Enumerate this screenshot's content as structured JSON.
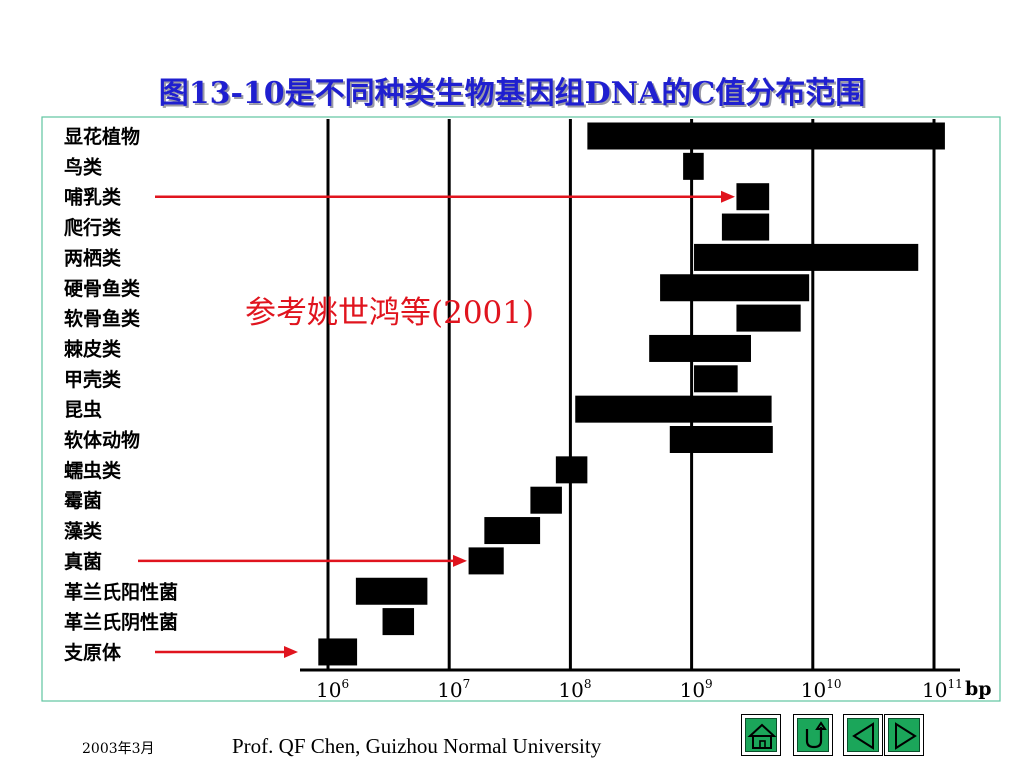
{
  "slide": {
    "title": "图13-10是不同种类生物基因组DNA的C值分布范围",
    "footer_date": "2003年3月",
    "footer_author": "Prof. QF Chen,  Guizhou Normal University",
    "nav_buttons": [
      "home-icon",
      "return-icon",
      "previous-icon",
      "next-icon"
    ],
    "colors": {
      "title": "#1f1fd0",
      "frame": "#5fc4a0",
      "annotation": "#e0141e",
      "bar": "#000000",
      "nav": "#1ba65a"
    }
  },
  "chart_data": {
    "type": "bar",
    "orientation": "horizontal-range",
    "scale": "log10",
    "unit_label": "bp",
    "x_ticks": [
      {
        "base": "10",
        "exp": "6",
        "value": 6
      },
      {
        "base": "10",
        "exp": "7",
        "value": 7
      },
      {
        "base": "10",
        "exp": "8",
        "value": 8
      },
      {
        "base": "10",
        "exp": "9",
        "value": 9
      },
      {
        "base": "10",
        "exp": "10",
        "value": 10
      },
      {
        "base": "10",
        "exp": "11",
        "value": 11
      }
    ],
    "categories": [
      "显花植物",
      "鸟类",
      "哺乳类",
      "爬行类",
      "两栖类",
      "硬骨鱼类",
      "软骨鱼类",
      "棘皮类",
      "甲壳类",
      "昆虫",
      "软体动物",
      "蠕虫类",
      "霉菌",
      "藻类",
      "真菌",
      "革兰氏阳性菌",
      "革兰氏阴性菌",
      "支原体"
    ],
    "ranges_log10": [
      [
        8.14,
        11.09
      ],
      [
        8.93,
        9.1
      ],
      [
        9.37,
        9.64
      ],
      [
        9.25,
        9.64
      ],
      [
        9.02,
        10.87
      ],
      [
        8.74,
        9.97
      ],
      [
        9.37,
        9.9
      ],
      [
        8.65,
        9.49
      ],
      [
        9.02,
        9.38
      ],
      [
        8.04,
        9.66
      ],
      [
        8.82,
        9.67
      ],
      [
        7.88,
        8.14
      ],
      [
        7.67,
        7.93
      ],
      [
        7.29,
        7.75
      ],
      [
        7.16,
        7.45
      ],
      [
        6.23,
        6.82
      ],
      [
        6.45,
        6.71
      ],
      [
        5.92,
        6.24
      ]
    ],
    "annotation": "参考姚世鸿等(2001)",
    "arrows": [
      {
        "target": "哺乳类"
      },
      {
        "target": "真菌"
      },
      {
        "target": "支原体"
      }
    ]
  }
}
